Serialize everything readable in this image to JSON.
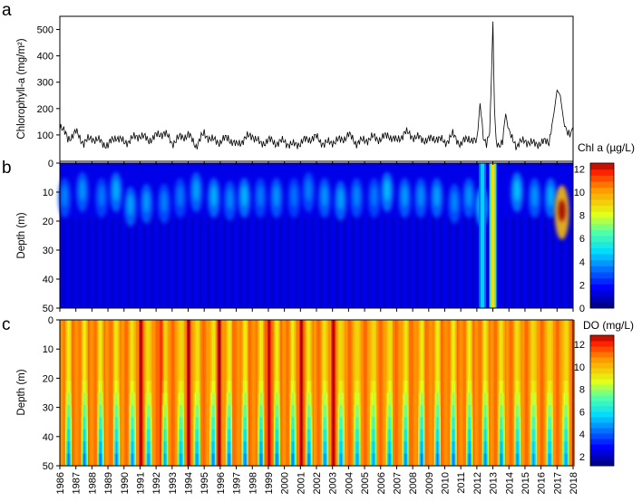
{
  "chart_data": [
    {
      "type": "line",
      "panel_letter": "a",
      "ylabel": "Chlorophyll-a (mg/m²)",
      "ylim": [
        0,
        550
      ],
      "yticks": [
        "100",
        "200",
        "300",
        "400",
        "500"
      ],
      "xlim": [
        1986,
        2018
      ],
      "x": [
        1986.0,
        1986.5,
        1987.0,
        1987.5,
        1988.0,
        1988.5,
        1989.0,
        1989.5,
        1990.0,
        1990.5,
        1991.0,
        1991.5,
        1992.0,
        1992.5,
        1993.0,
        1993.5,
        1994.0,
        1994.5,
        1995.0,
        1995.5,
        1996.0,
        1996.5,
        1997.0,
        1997.5,
        1998.0,
        1998.5,
        1999.0,
        1999.5,
        2000.0,
        2000.5,
        2001.0,
        2001.5,
        2002.0,
        2002.5,
        2003.0,
        2003.5,
        2004.0,
        2004.5,
        2005.0,
        2005.5,
        2006.0,
        2006.5,
        2007.0,
        2007.5,
        2008.0,
        2008.5,
        2009.0,
        2009.5,
        2010.0,
        2010.5,
        2011.0,
        2011.5,
        2012.0,
        2012.2,
        2012.4,
        2012.6,
        2012.8,
        2012.9,
        2013.0,
        2013.1,
        2013.2,
        2013.4,
        2013.6,
        2013.8,
        2014.0,
        2014.2,
        2014.5,
        2015.0,
        2015.5,
        2016.0,
        2016.5,
        2016.8,
        2017.0,
        2017.2,
        2017.4,
        2017.6,
        2017.8,
        2018.0
      ],
      "values": [
        140,
        85,
        110,
        70,
        90,
        75,
        60,
        95,
        70,
        85,
        100,
        80,
        95,
        110,
        70,
        90,
        100,
        60,
        105,
        80,
        75,
        90,
        60,
        85,
        100,
        65,
        80,
        70,
        75,
        60,
        70,
        85,
        90,
        65,
        75,
        80,
        100,
        70,
        80,
        90,
        85,
        100,
        75,
        110,
        95,
        85,
        80,
        90,
        70,
        100,
        65,
        90,
        70,
        220,
        90,
        70,
        120,
        300,
        530,
        200,
        80,
        60,
        75,
        180,
        110,
        80,
        60,
        80,
        65,
        70,
        75,
        180,
        270,
        250,
        160,
        120,
        110,
        130
      ]
    },
    {
      "type": "heatmap",
      "panel_letter": "b",
      "ylabel": "Depth (m)",
      "yticks": [
        "0",
        "10",
        "20",
        "30",
        "40",
        "50"
      ],
      "ylim": [
        50,
        0
      ],
      "xlim": [
        1986,
        2018
      ],
      "colorbar": {
        "title": "Chl a (µg/L)",
        "ticks": [
          "0",
          "2",
          "4",
          "6",
          "8",
          "10",
          "12"
        ],
        "range": [
          0,
          12.5
        ]
      },
      "baseline_value": 1.2,
      "blooms": [
        {
          "x": 1986.3,
          "depth": 12,
          "value": 3.5
        },
        {
          "x": 1987.4,
          "depth": 10,
          "value": 3.8
        },
        {
          "x": 1988.6,
          "depth": 12,
          "value": 3.4
        },
        {
          "x": 1989.5,
          "depth": 10,
          "value": 4.2
        },
        {
          "x": 1990.4,
          "depth": 15,
          "value": 4.0
        },
        {
          "x": 1991.4,
          "depth": 14,
          "value": 3.9
        },
        {
          "x": 1992.5,
          "depth": 14,
          "value": 3.5
        },
        {
          "x": 1993.5,
          "depth": 12,
          "value": 3.4
        },
        {
          "x": 1994.5,
          "depth": 10,
          "value": 4.0
        },
        {
          "x": 1995.6,
          "depth": 12,
          "value": 4.2
        },
        {
          "x": 1996.6,
          "depth": 13,
          "value": 3.6
        },
        {
          "x": 1997.5,
          "depth": 12,
          "value": 4.3
        },
        {
          "x": 1998.5,
          "depth": 12,
          "value": 3.4
        },
        {
          "x": 1999.5,
          "depth": 12,
          "value": 3.8
        },
        {
          "x": 2000.6,
          "depth": 12,
          "value": 3.3
        },
        {
          "x": 2001.5,
          "depth": 10,
          "value": 3.5
        },
        {
          "x": 2002.5,
          "depth": 12,
          "value": 3.8
        },
        {
          "x": 2003.5,
          "depth": 13,
          "value": 4.0
        },
        {
          "x": 2004.5,
          "depth": 12,
          "value": 3.6
        },
        {
          "x": 2005.6,
          "depth": 12,
          "value": 3.4
        },
        {
          "x": 2006.4,
          "depth": 10,
          "value": 4.4
        },
        {
          "x": 2007.5,
          "depth": 12,
          "value": 3.9
        },
        {
          "x": 2008.5,
          "depth": 12,
          "value": 3.7
        },
        {
          "x": 2009.5,
          "depth": 12,
          "value": 4.0
        },
        {
          "x": 2010.6,
          "depth": 14,
          "value": 3.6
        },
        {
          "x": 2011.5,
          "depth": 12,
          "value": 3.8
        },
        {
          "x": 2012.3,
          "depth": 15,
          "value": 5.0
        },
        {
          "x": 2014.5,
          "depth": 10,
          "value": 4.5
        },
        {
          "x": 2015.6,
          "depth": 12,
          "value": 3.8
        },
        {
          "x": 2016.6,
          "depth": 12,
          "value": 4.2
        },
        {
          "x": 2017.3,
          "depth": 17,
          "value": 12.3
        }
      ],
      "columns": [
        {
          "x": 2012.35,
          "value": 4.5
        },
        {
          "x": 2013.0,
          "value": 8.5
        }
      ]
    },
    {
      "type": "heatmap",
      "panel_letter": "c",
      "ylabel": "Depth (m)",
      "yticks": [
        "0",
        "10",
        "20",
        "30",
        "40",
        "50"
      ],
      "ylim": [
        50,
        0
      ],
      "xlim": [
        1986,
        2018
      ],
      "colorbar": {
        "title": "DO (mg/L)",
        "ticks": [
          "2",
          "4",
          "6",
          "8",
          "10",
          "12"
        ],
        "range": [
          1.2,
          12.8
        ]
      },
      "winter_surface_value": 10.8,
      "summer_surface_value": 9.0,
      "summer_bottom_value": 4.0,
      "high_years": [
        1991,
        1995.9,
        2001,
        2003,
        1999,
        1994,
        1992.3
      ],
      "xticks": [
        "1986",
        "1987",
        "1988",
        "1989",
        "1990",
        "1991",
        "1992",
        "1993",
        "1994",
        "1995",
        "1996",
        "1997",
        "1998",
        "1999",
        "2000",
        "2001",
        "2002",
        "2003",
        "2004",
        "2005",
        "2006",
        "2007",
        "2008",
        "2009",
        "2010",
        "2011",
        "2012",
        "2013",
        "2014",
        "2015",
        "2016",
        "2017",
        "2018"
      ]
    }
  ]
}
